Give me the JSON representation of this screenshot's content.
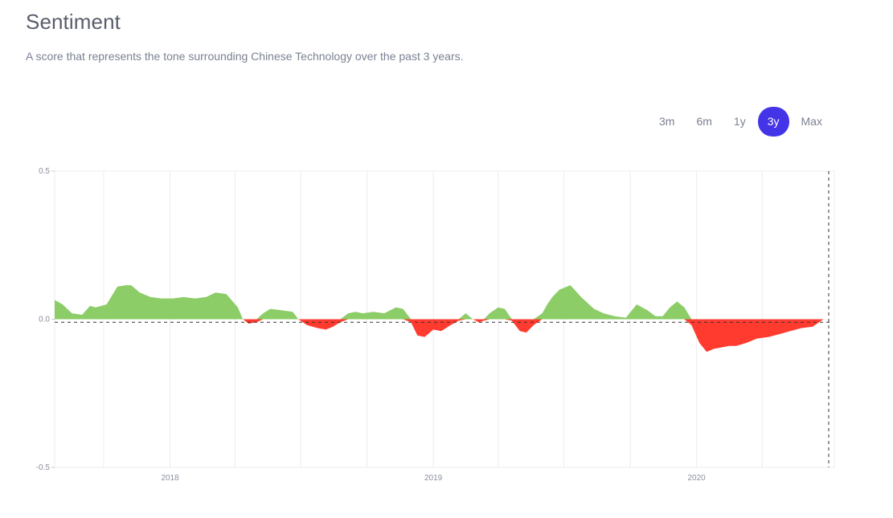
{
  "header": {
    "title": "Sentiment",
    "subtitle": "A score that represents the tone surrounding Chinese Technology over the past 3 years."
  },
  "range_tabs": [
    {
      "label": "3m",
      "active": false
    },
    {
      "label": "6m",
      "active": false
    },
    {
      "label": "1y",
      "active": false
    },
    {
      "label": "3y",
      "active": true
    },
    {
      "label": "Max",
      "active": false
    }
  ],
  "colors": {
    "accent": "#4434e8",
    "positive": "#8ccd68",
    "negative": "#ff3b30",
    "grid": "#ececec",
    "baseline": "#333333"
  },
  "chart_data": {
    "type": "area",
    "title": "",
    "xlabel": "",
    "ylabel": "",
    "x_tick_labels": [
      "2018",
      "2019",
      "2020"
    ],
    "y_tick_labels": [
      "0.5",
      "0.0",
      "-0.5"
    ],
    "ylim": [
      -0.5,
      0.5
    ],
    "xlim": [
      "2017-07-25",
      "2020-07-10"
    ],
    "reference_line": -0.01,
    "grid": true,
    "series": [
      {
        "x": [
          "2017-07-25",
          "2017-08-05",
          "2017-08-18",
          "2017-09-01",
          "2017-09-12",
          "2017-09-20",
          "2017-10-05",
          "2017-10-20",
          "2017-11-01",
          "2017-11-08",
          "2017-11-20",
          "2017-12-05",
          "2017-12-20",
          "2018-01-05",
          "2018-01-20",
          "2018-02-05",
          "2018-02-20",
          "2018-03-05",
          "2018-03-20",
          "2018-04-05",
          "2018-04-12",
          "2018-04-20",
          "2018-05-01",
          "2018-05-10",
          "2018-05-20",
          "2018-06-05",
          "2018-06-20",
          "2018-06-28",
          "2018-07-10",
          "2018-07-25",
          "2018-08-05",
          "2018-08-15",
          "2018-08-25",
          "2018-09-05",
          "2018-09-15",
          "2018-09-25",
          "2018-10-10",
          "2018-10-25",
          "2018-11-10",
          "2018-11-20",
          "2018-12-01",
          "2018-12-10",
          "2018-12-20",
          "2019-01-01",
          "2019-01-12",
          "2019-01-25",
          "2019-02-05",
          "2019-02-15",
          "2019-02-25",
          "2019-03-05",
          "2019-03-12",
          "2019-03-20",
          "2019-04-01",
          "2019-04-10",
          "2019-04-20",
          "2019-05-01",
          "2019-05-10",
          "2019-05-20",
          "2019-06-01",
          "2019-06-08",
          "2019-06-15",
          "2019-06-25",
          "2019-07-10",
          "2019-07-25",
          "2019-08-05",
          "2019-08-12",
          "2019-08-25",
          "2019-09-10",
          "2019-09-25",
          "2019-10-10",
          "2019-10-25",
          "2019-11-05",
          "2019-11-15",
          "2019-11-25",
          "2019-12-05",
          "2019-12-15",
          "2019-12-25",
          "2020-01-05",
          "2020-01-15",
          "2020-01-25",
          "2020-02-05",
          "2020-02-15",
          "2020-02-25",
          "2020-03-10",
          "2020-03-25",
          "2020-04-10",
          "2020-04-25",
          "2020-05-10",
          "2020-05-25",
          "2020-06-10",
          "2020-06-25",
          "2020-07-10"
        ],
        "y": [
          0.065,
          0.05,
          0.02,
          0.015,
          0.045,
          0.04,
          0.05,
          0.11,
          0.115,
          0.115,
          0.09,
          0.075,
          0.07,
          0.07,
          0.075,
          0.07,
          0.075,
          0.09,
          0.085,
          0.04,
          0.0,
          -0.015,
          -0.01,
          0.02,
          0.035,
          0.03,
          0.025,
          0.0,
          -0.02,
          -0.03,
          -0.035,
          -0.025,
          -0.01,
          0.02,
          0.025,
          0.02,
          0.025,
          0.02,
          0.04,
          0.035,
          -0.01,
          -0.055,
          -0.06,
          -0.035,
          -0.04,
          -0.02,
          -0.005,
          0.02,
          0.0,
          -0.01,
          -0.005,
          0.02,
          0.04,
          0.035,
          -0.005,
          -0.04,
          -0.045,
          -0.02,
          0.02,
          0.05,
          0.075,
          0.1,
          0.115,
          0.075,
          0.05,
          0.035,
          0.02,
          0.01,
          0.005,
          0.05,
          0.03,
          0.01,
          0.01,
          0.04,
          0.06,
          0.04,
          -0.02,
          -0.08,
          -0.11,
          -0.1,
          -0.095,
          -0.09,
          -0.09,
          -0.08,
          -0.065,
          -0.06,
          -0.05,
          -0.04,
          -0.03,
          -0.025,
          0.0,
          0.0
        ]
      }
    ]
  }
}
